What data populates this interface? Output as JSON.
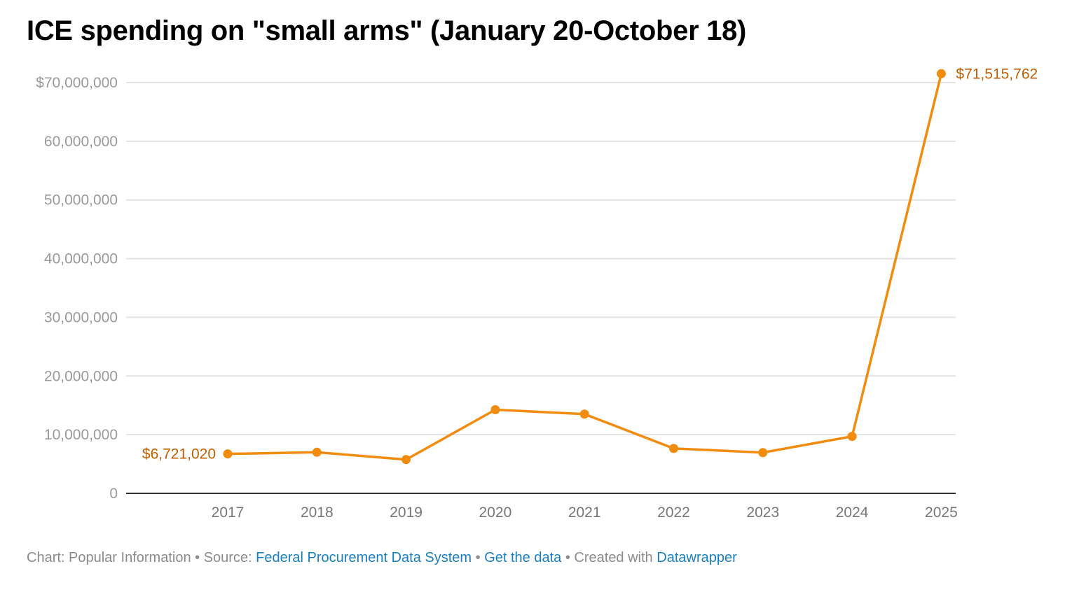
{
  "title": "ICE spending on \"small arms\" (January 20-October 18)",
  "footer": {
    "chart_label": "Chart: Popular Information",
    "sep1": " • ",
    "source_label": "Source: ",
    "source_link": "Federal Procurement Data System",
    "sep2": " • ",
    "get_data_link": "Get the data",
    "sep3": " • ",
    "created_label": "Created with ",
    "datawrapper_link": "Datawrapper"
  },
  "colors": {
    "line": "#f28c0f",
    "annotation": "#c15e00",
    "tick_text": "#9a9a9a",
    "grid": "#e3e3e3",
    "axis": "#333333",
    "link": "#1a7fc1"
  },
  "chart_data": {
    "type": "line",
    "title": "ICE spending on \"small arms\" (January 20-October 18)",
    "xlabel": "",
    "ylabel": "",
    "x": [
      2017,
      2018,
      2019,
      2020,
      2021,
      2022,
      2023,
      2024,
      2025
    ],
    "series": [
      {
        "values": [
          6721020,
          7000000,
          5750000,
          14250000,
          13500000,
          7650000,
          6950000,
          9700000,
          71515762
        ]
      }
    ],
    "ylim": [
      0,
      70000000
    ],
    "xlim": [
      2016,
      2025.15
    ],
    "y_ticks": [
      0,
      10000000,
      20000000,
      30000000,
      40000000,
      50000000,
      60000000,
      70000000
    ],
    "y_tick_labels": [
      "0",
      "10,000,000",
      "20,000,000",
      "30,000,000",
      "40,000,000",
      "50,000,000",
      "60,000,000",
      "$70,000,000"
    ],
    "x_tick_labels": [
      "2017",
      "2018",
      "2019",
      "2020",
      "2021",
      "2022",
      "2023",
      "2024",
      "2025"
    ],
    "annotations": [
      {
        "x": 2017,
        "label": "$6,721,020",
        "side": "left"
      },
      {
        "x": 2025,
        "label": "$71,515,762",
        "side": "right"
      }
    ],
    "grid": true,
    "legend": "none"
  }
}
